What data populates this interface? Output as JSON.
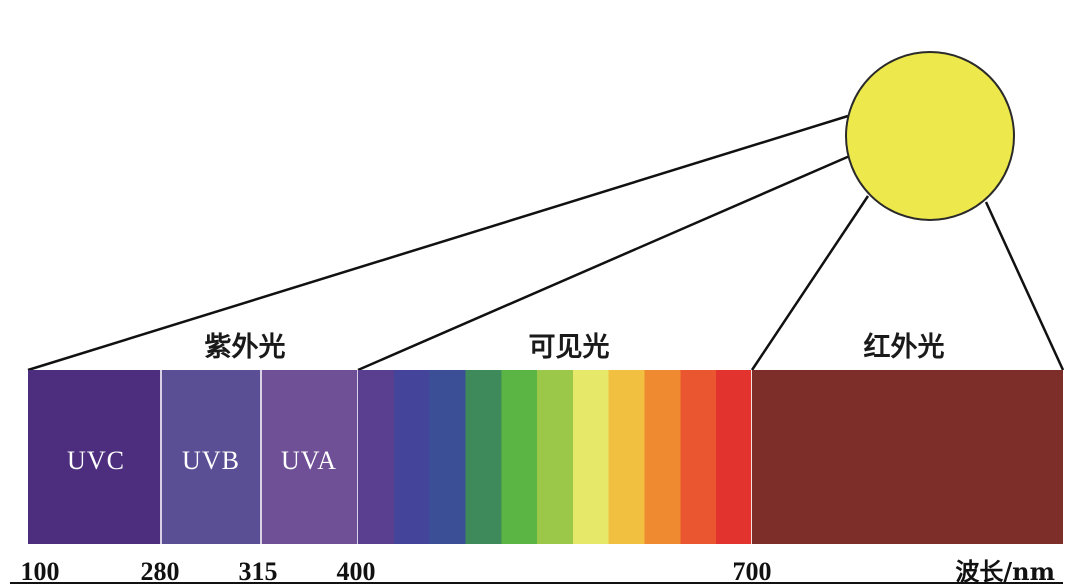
{
  "diagram": {
    "bands": [
      {
        "key": "uv",
        "label": "紫外光"
      },
      {
        "key": "visible",
        "label": "可见光"
      },
      {
        "key": "ir",
        "label": "红外光"
      }
    ],
    "uv_sub_bands": [
      {
        "label": "UVC",
        "color": "#4d2e7e"
      },
      {
        "label": "UVB",
        "color": "#5a4f95"
      },
      {
        "label": "UVA",
        "color": "#6f4f95"
      }
    ],
    "ticks": [
      "100",
      "280",
      "315",
      "400",
      "700"
    ],
    "axis_unit": "波长/nm",
    "colors": {
      "sun_fill": "#ede84b",
      "sun_stroke": "#2a2a2a",
      "infrared": "#7d2e28",
      "visible_spectrum": [
        "#5a3e90",
        "#44449a",
        "#3a4f96",
        "#3e8a5a",
        "#5bb545",
        "#9cc84a",
        "#e6e86a",
        "#f1c040",
        "#ef8a30",
        "#e9562f",
        "#e3332e"
      ]
    }
  }
}
